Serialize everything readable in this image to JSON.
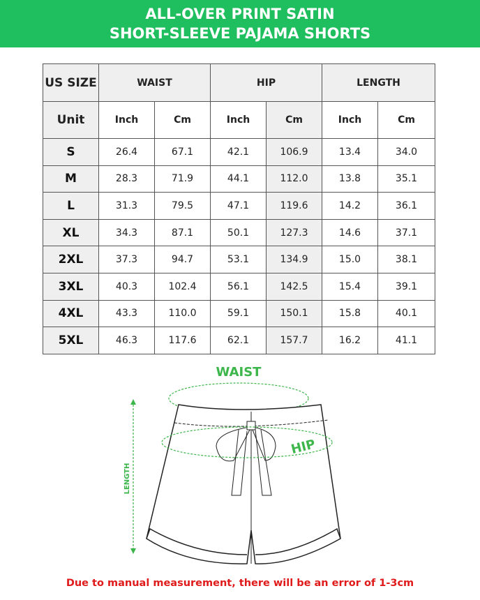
{
  "title_line1": "ALL-OVER PRINT SATIN",
  "title_line2": "SHORT-SLEEVE PAJAMA SHORTS",
  "table": {
    "size_header": "US SIZE",
    "unit_header": "Unit",
    "groups": [
      "WAIST",
      "HIP",
      "LENGTH"
    ],
    "units": [
      "Inch",
      "Cm",
      "Inch",
      "Cm",
      "Inch",
      "Cm"
    ],
    "rows": [
      {
        "size": "S",
        "values": [
          "26.4",
          "67.1",
          "42.1",
          "106.9",
          "13.4",
          "34.0"
        ]
      },
      {
        "size": "M",
        "values": [
          "28.3",
          "71.9",
          "44.1",
          "112.0",
          "13.8",
          "35.1"
        ]
      },
      {
        "size": "L",
        "values": [
          "31.3",
          "79.5",
          "47.1",
          "119.6",
          "14.2",
          "36.1"
        ]
      },
      {
        "size": "XL",
        "values": [
          "34.3",
          "87.1",
          "50.1",
          "127.3",
          "14.6",
          "37.1"
        ]
      },
      {
        "size": "2XL",
        "values": [
          "37.3",
          "94.7",
          "53.1",
          "134.9",
          "15.0",
          "38.1"
        ]
      },
      {
        "size": "3XL",
        "values": [
          "40.3",
          "102.4",
          "56.1",
          "142.5",
          "15.4",
          "39.1"
        ]
      },
      {
        "size": "4XL",
        "values": [
          "43.3",
          "110.0",
          "59.1",
          "150.1",
          "15.8",
          "40.1"
        ]
      },
      {
        "size": "5XL",
        "values": [
          "46.3",
          "117.6",
          "62.1",
          "157.7",
          "16.2",
          "41.1"
        ]
      }
    ]
  },
  "diagram": {
    "waist_label": "WAIST",
    "hip_label": "HIP",
    "length_label": "LENGTH"
  },
  "note": "Due to manual measurement, there will be an error of 1-3cm",
  "colors": {
    "brand_green": "#1fbf5f",
    "measure_green": "#3cb54a",
    "note_red": "#e01b1b"
  }
}
